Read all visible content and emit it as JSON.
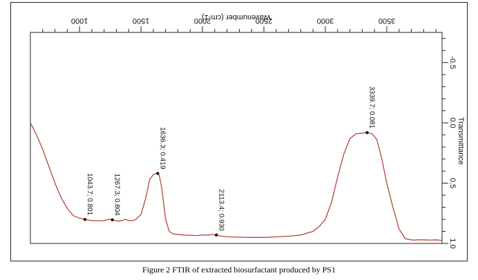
{
  "caption": "Figure 2 FTIR of extracted biosurfactant produced by PS1",
  "chart_data": {
    "type": "line",
    "title": "",
    "xlabel": "Wavenumber (cm-1)",
    "ylabel": "Transmittance",
    "xlim": [
      600,
      3950
    ],
    "ylim": [
      -0.75,
      1.0
    ],
    "x_ticks": [
      1000,
      1500,
      2000,
      2500,
      3000,
      3500
    ],
    "y_ticks": [
      -0.5,
      0.0,
      0.5,
      1.0
    ],
    "y_tick_labels": [
      "-0.5",
      "0.0",
      "0.5",
      "1.0"
    ],
    "series": [
      {
        "color": "#b5443b",
        "x": [
          600,
          650,
          700,
          750,
          800,
          850,
          900,
          950,
          1000,
          1043.7,
          1100,
          1150,
          1200,
          1240,
          1267.3,
          1290,
          1320,
          1350,
          1370,
          1400,
          1430,
          1460,
          1500,
          1540,
          1570,
          1600,
          1620,
          1636.3,
          1650,
          1670,
          1700,
          1730,
          1760,
          1800,
          1850,
          1900,
          1950,
          2000,
          2050,
          2080,
          2100,
          2113.4,
          2130,
          2160,
          2200,
          2300,
          2400,
          2500,
          2600,
          2700,
          2800,
          2900,
          2950,
          3000,
          3050,
          3100,
          3150,
          3200,
          3250,
          3300,
          3339.7,
          3380,
          3420,
          3460,
          3500,
          3550,
          3600,
          3650,
          3700,
          3720,
          3750,
          3800,
          3850,
          3900,
          3950
        ],
        "y": [
          0.0,
          0.1,
          0.22,
          0.36,
          0.5,
          0.62,
          0.71,
          0.77,
          0.79,
          0.801,
          0.81,
          0.812,
          0.81,
          0.8,
          0.804,
          0.81,
          0.815,
          0.81,
          0.8,
          0.81,
          0.812,
          0.8,
          0.76,
          0.62,
          0.47,
          0.43,
          0.42,
          0.419,
          0.44,
          0.55,
          0.8,
          0.9,
          0.92,
          0.925,
          0.93,
          0.932,
          0.935,
          0.93,
          0.93,
          0.925,
          0.93,
          0.93,
          0.935,
          0.94,
          0.945,
          0.948,
          0.95,
          0.95,
          0.945,
          0.94,
          0.93,
          0.9,
          0.86,
          0.8,
          0.66,
          0.45,
          0.26,
          0.13,
          0.09,
          0.085,
          0.081,
          0.09,
          0.14,
          0.3,
          0.5,
          0.7,
          0.88,
          0.96,
          0.97,
          0.972,
          0.97,
          0.97,
          0.972,
          0.97,
          0.975
        ]
      }
    ],
    "annotations": [
      {
        "x": 1043.7,
        "y": 0.801,
        "text": "1043.7; 0.801"
      },
      {
        "x": 1267.3,
        "y": 0.804,
        "text": "1267.3; 0.804"
      },
      {
        "x": 1636.3,
        "y": 0.419,
        "text": "1636.3; 0.419"
      },
      {
        "x": 2113.4,
        "y": 0.93,
        "text": "2113.4; 0.930"
      },
      {
        "x": 3339.7,
        "y": 0.081,
        "text": "3339.7; 0.081"
      }
    ]
  }
}
